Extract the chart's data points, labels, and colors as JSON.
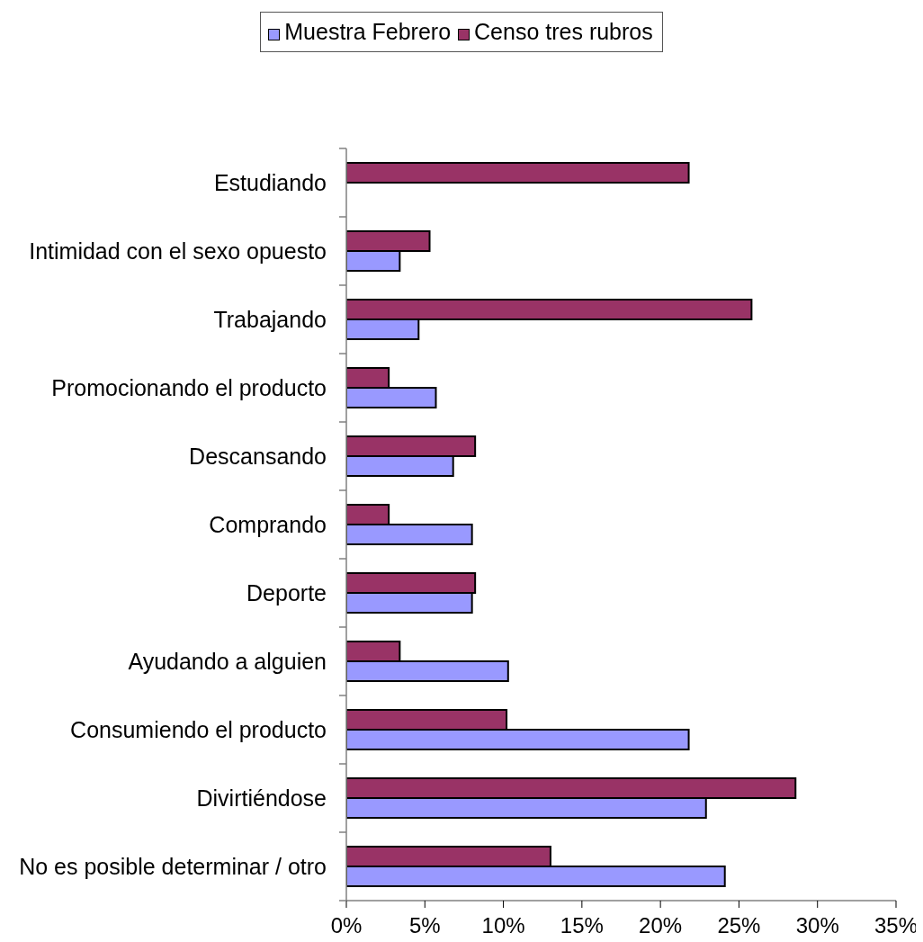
{
  "chart_data": {
    "type": "bar",
    "orientation": "horizontal",
    "legend": "top",
    "categories": [
      "Estudiando",
      "Intimidad con el sexo opuesto",
      "Trabajando",
      "Promocionando el producto",
      "Descansando",
      "Comprando",
      "Deporte",
      "Ayudando a alguien",
      "Consumiendo el producto",
      "Divirtiéndose",
      "No es posible determinar / otro"
    ],
    "series": [
      {
        "name": "Muestra Febrero",
        "color": "#9999ff",
        "values": [
          null,
          3.4,
          4.6,
          5.7,
          6.8,
          8.0,
          8.0,
          10.3,
          21.8,
          22.9,
          24.1
        ]
      },
      {
        "name": "Censo tres rubros",
        "color": "#993366",
        "values": [
          21.8,
          5.3,
          25.8,
          2.7,
          8.2,
          2.7,
          8.2,
          3.4,
          10.2,
          28.6,
          13.0
        ]
      }
    ],
    "xlim": [
      0,
      35
    ],
    "xticks": [
      {
        "value": 0,
        "label": "0%"
      },
      {
        "value": 5,
        "label": "5%"
      },
      {
        "value": 10,
        "label": "10%"
      },
      {
        "value": 15,
        "label": "15%"
      },
      {
        "value": 20,
        "label": "20%"
      },
      {
        "value": 25,
        "label": "25%"
      },
      {
        "value": 30,
        "label": "30%"
      },
      {
        "value": 35,
        "label": "35%"
      }
    ]
  }
}
